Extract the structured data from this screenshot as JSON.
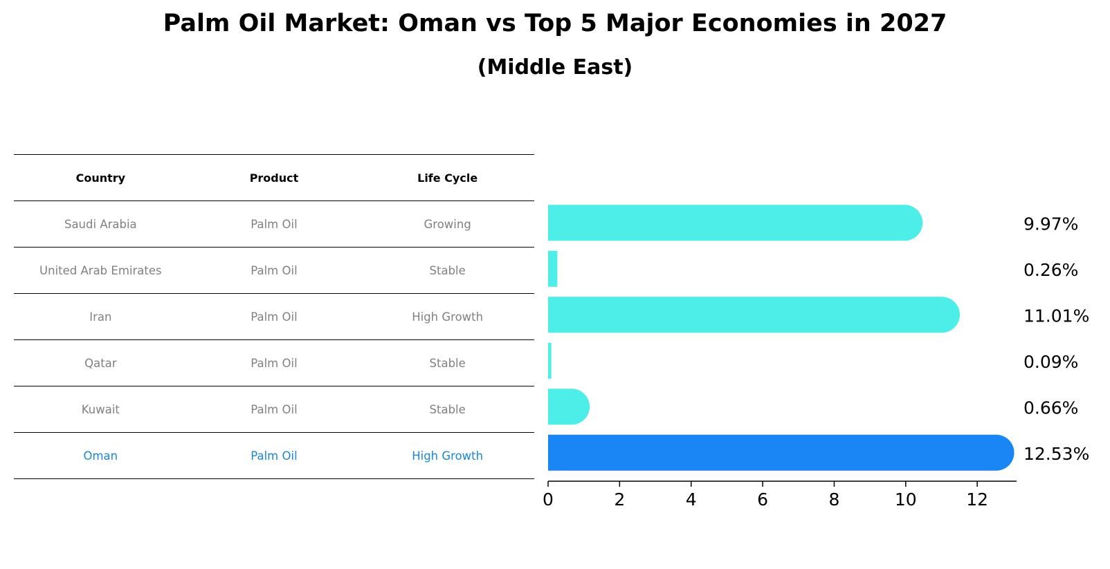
{
  "header": {
    "title": "Palm Oil Market: Oman vs Top 5 Major Economies in 2027",
    "subtitle": "(Middle East)"
  },
  "table": {
    "columns": [
      "Country",
      "Product",
      "Life Cycle"
    ],
    "rows": [
      {
        "country": "Saudi Arabia",
        "product": "Palm Oil",
        "life_cycle": "Growing"
      },
      {
        "country": "United Arab Emirates",
        "product": "Palm Oil",
        "life_cycle": "Stable"
      },
      {
        "country": "Iran",
        "product": "Palm Oil",
        "life_cycle": "High Growth"
      },
      {
        "country": "Qatar",
        "product": "Palm Oil",
        "life_cycle": "Stable"
      },
      {
        "country": "Kuwait",
        "product": "Palm Oil",
        "life_cycle": "Stable"
      },
      {
        "country": "Oman",
        "product": "Palm Oil",
        "life_cycle": "High Growth"
      }
    ]
  },
  "chart_data": {
    "type": "bar",
    "orientation": "horizontal",
    "title": "Palm Oil Market: Oman vs Top 5 Major Economies in 2027",
    "subtitle": "(Middle East)",
    "categories": [
      "Saudi Arabia",
      "United Arab Emirates",
      "Iran",
      "Qatar",
      "Kuwait",
      "Oman"
    ],
    "values": [
      9.97,
      0.26,
      11.01,
      0.09,
      0.66,
      12.53
    ],
    "value_labels": [
      "9.97%",
      "0.26%",
      "11.01%",
      "0.09%",
      "0.66%",
      "12.53%"
    ],
    "highlight": "Oman",
    "xticks": [
      0,
      2,
      4,
      6,
      8,
      10,
      12
    ],
    "xlim": [
      0,
      13.1
    ],
    "grid": false,
    "colors": {
      "default": "#4deee8",
      "highlight": "#1a86f5",
      "highlight_text": "#1a86d8",
      "muted_text": "#808080"
    }
  }
}
